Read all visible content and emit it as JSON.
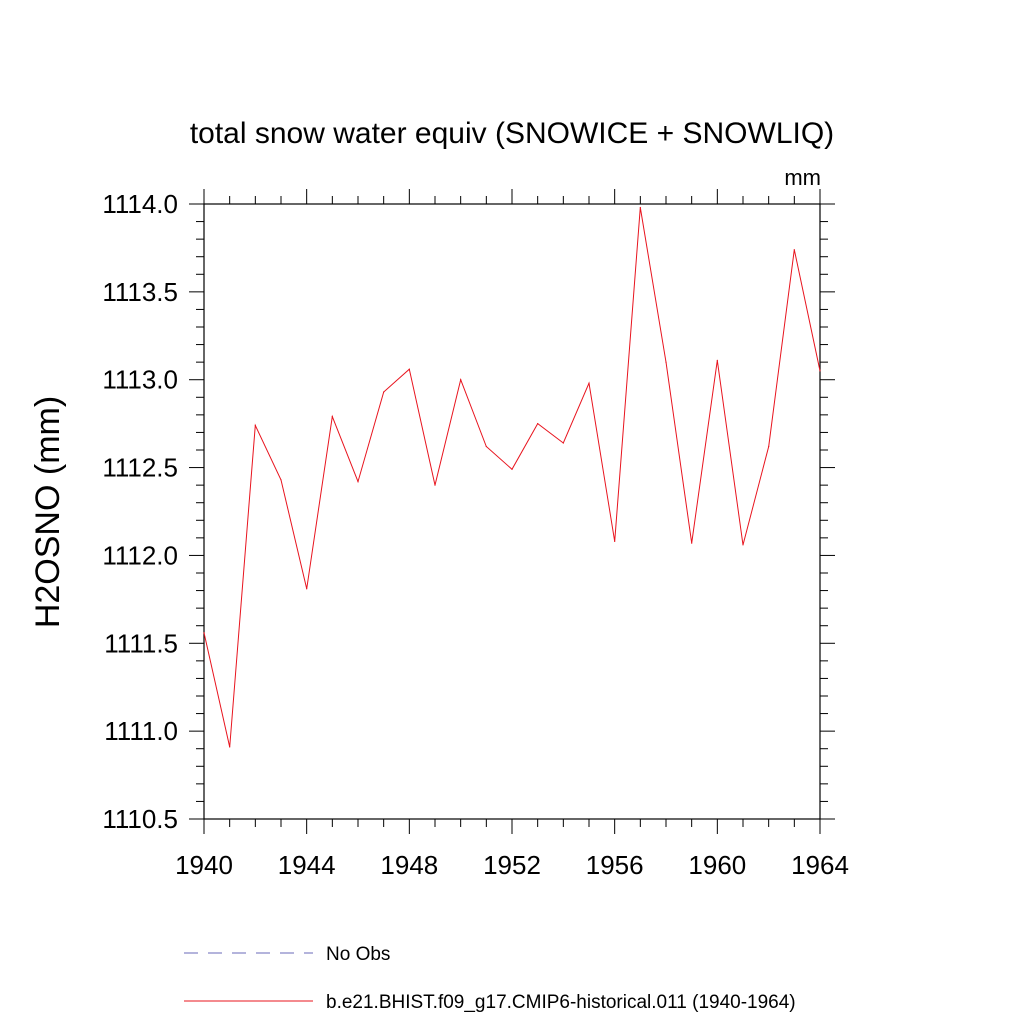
{
  "chart_data": {
    "type": "line",
    "title": "total snow water equiv (SNOWICE + SNOWLIQ)",
    "units_label": "mm",
    "ylabel": "H2OSNO  (mm)",
    "xlabel": "",
    "xlim": [
      1940,
      1964
    ],
    "ylim": [
      1110.5,
      1114.0
    ],
    "x_ticks": [
      1940,
      1944,
      1948,
      1952,
      1956,
      1960,
      1964
    ],
    "x_tick_labels": [
      "1940",
      "1944",
      "1948",
      "1952",
      "1956",
      "1960",
      "1964"
    ],
    "y_ticks": [
      1110.5,
      1111.0,
      1111.5,
      1112.0,
      1112.5,
      1113.0,
      1113.5,
      1114.0
    ],
    "y_tick_labels": [
      "1110.5",
      "1111.0",
      "1111.5",
      "1112.0",
      "1112.5",
      "1113.0",
      "1113.5",
      "1114.0"
    ],
    "grid": false,
    "legend_placement": "bottom",
    "series": [
      {
        "name": "No Obs",
        "color": "#6a6ab8",
        "style": "dashed",
        "x": [],
        "values": []
      },
      {
        "name": "b.e21.BHIST.f09_g17.CMIP6-historical.011 (1940-1964)",
        "color": "#e8141e",
        "style": "solid",
        "x": [
          1940,
          1941,
          1942,
          1943,
          1944,
          1945,
          1946,
          1947,
          1948,
          1949,
          1950,
          1951,
          1952,
          1953,
          1954,
          1955,
          1956,
          1957,
          1958,
          1959,
          1960,
          1961,
          1962,
          1963,
          1964
        ],
        "values": [
          1111.56,
          1110.91,
          1112.74,
          1112.43,
          1111.81,
          1112.79,
          1112.42,
          1112.93,
          1113.06,
          1112.4,
          1113.0,
          1112.62,
          1112.49,
          1112.75,
          1112.64,
          1112.98,
          1112.08,
          1113.98,
          1113.1,
          1112.07,
          1113.11,
          1112.06,
          1112.62,
          1113.74,
          1113.05
        ]
      }
    ]
  }
}
